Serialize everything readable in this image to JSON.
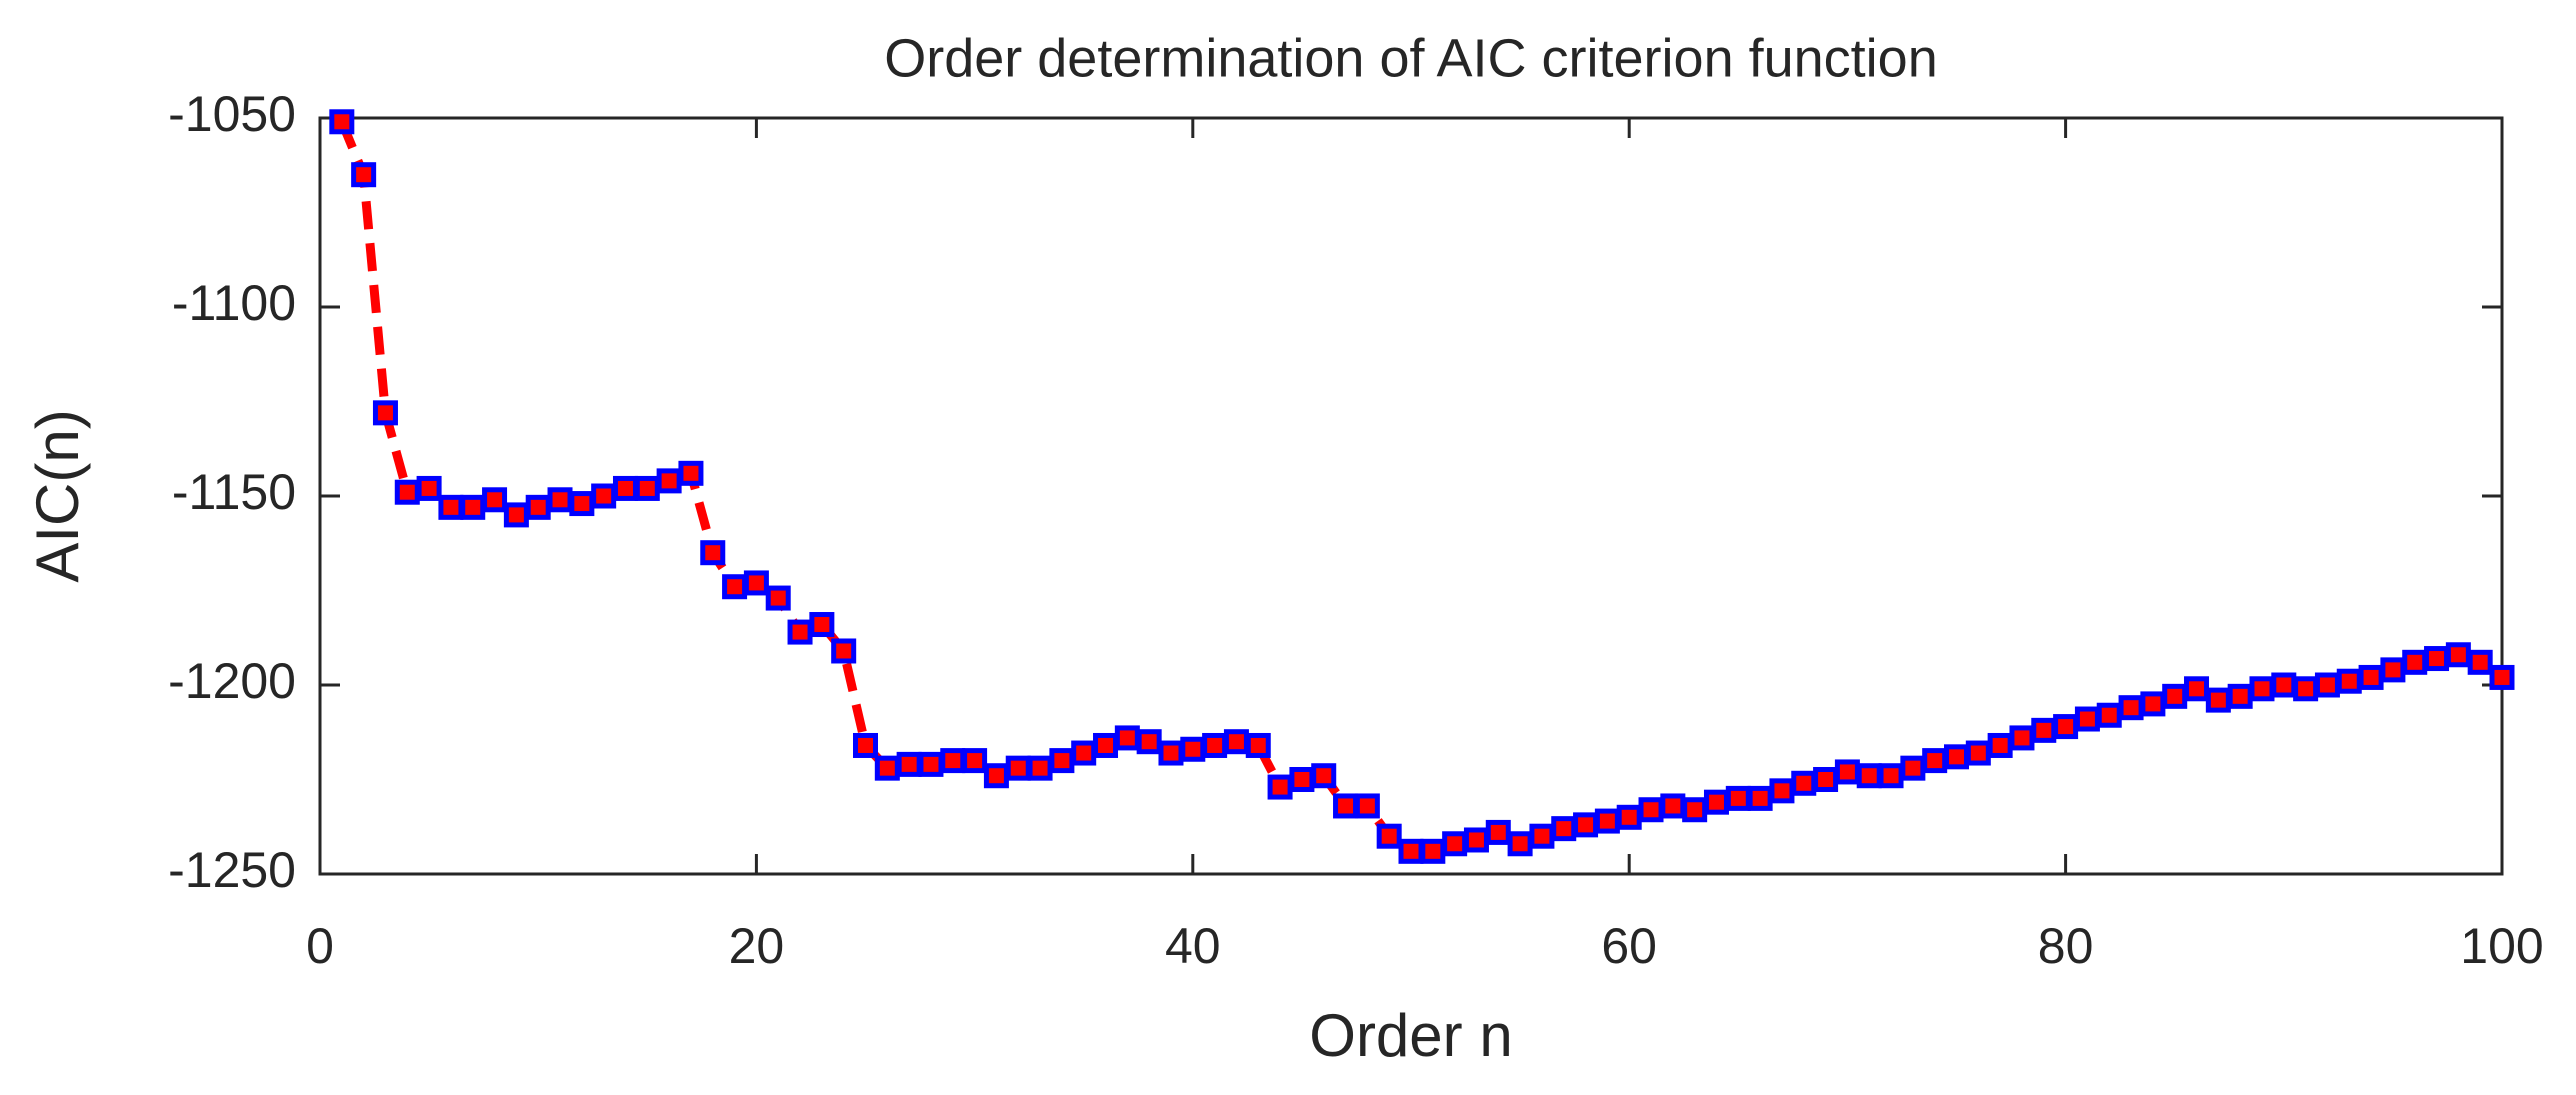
{
  "chart_data": {
    "type": "line",
    "title": "Order determination of AIC criterion function",
    "xlabel": "Order n",
    "ylabel": "AIC(n)",
    "x": [
      1,
      2,
      3,
      4,
      5,
      6,
      7,
      8,
      9,
      10,
      11,
      12,
      13,
      14,
      15,
      16,
      17,
      18,
      19,
      20,
      21,
      22,
      23,
      24,
      25,
      26,
      27,
      28,
      29,
      30,
      31,
      32,
      33,
      34,
      35,
      36,
      37,
      38,
      39,
      40,
      41,
      42,
      43,
      44,
      45,
      46,
      47,
      48,
      49,
      50,
      51,
      52,
      53,
      54,
      55,
      56,
      57,
      58,
      59,
      60,
      61,
      62,
      63,
      64,
      65,
      66,
      67,
      68,
      69,
      70,
      71,
      72,
      73,
      74,
      75,
      76,
      77,
      78,
      79,
      80,
      81,
      82,
      83,
      84,
      85,
      86,
      87,
      88,
      89,
      90,
      91,
      92,
      93,
      94,
      95,
      96,
      97,
      98,
      99,
      100
    ],
    "values": [
      -1051,
      -1065,
      -1128,
      -1149,
      -1148,
      -1153,
      -1153,
      -1151,
      -1155,
      -1153,
      -1151,
      -1152,
      -1150,
      -1148,
      -1148,
      -1146,
      -1144,
      -1165,
      -1174,
      -1173,
      -1177,
      -1186,
      -1184,
      -1191,
      -1216,
      -1222,
      -1221,
      -1221,
      -1220,
      -1220,
      -1224,
      -1222,
      -1222,
      -1220,
      -1218,
      -1216,
      -1214,
      -1215,
      -1218,
      -1217,
      -1216,
      -1215,
      -1216,
      -1227,
      -1225,
      -1224,
      -1232,
      -1232,
      -1240,
      -1244,
      -1244,
      -1242,
      -1241,
      -1239,
      -1242,
      -1240,
      -1238,
      -1237,
      -1236,
      -1235,
      -1233,
      -1232,
      -1233,
      -1231,
      -1230,
      -1230,
      -1228,
      -1226,
      -1225,
      -1223,
      -1224,
      -1224,
      -1222,
      -1220,
      -1219,
      -1218,
      -1216,
      -1214,
      -1212,
      -1211,
      -1209,
      -1208,
      -1206,
      -1205,
      -1203,
      -1201,
      -1204,
      -1203,
      -1201,
      -1200,
      -1201,
      -1200,
      -1199,
      -1198,
      -1196,
      -1194,
      -1193,
      -1192,
      -1194,
      -1198
    ],
    "color": "#ff0000",
    "marker_edge_color": "#0000ff",
    "line_style": "dashed",
    "xlim": [
      0,
      100
    ],
    "xticks": [
      0,
      20,
      40,
      60,
      80,
      100
    ],
    "ylim": [
      -1250,
      -1050
    ],
    "yticks": [
      -1250,
      -1200,
      -1150,
      -1100,
      -1050
    ]
  }
}
